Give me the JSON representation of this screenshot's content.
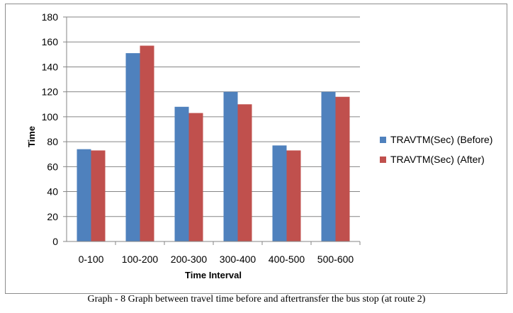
{
  "caption": "Graph - 8 Graph between travel time before and aftertransfer the bus stop (at route 2)",
  "colors": {
    "before": "#4f81bd",
    "after": "#c0504d",
    "grid": "#868686",
    "axis": "#868686",
    "text": "#000000"
  },
  "chart_data": {
    "type": "bar",
    "title": "",
    "xlabel": "Time Interval",
    "ylabel": "Time",
    "ylim": [
      0,
      180
    ],
    "yticks": [
      0,
      20,
      40,
      60,
      80,
      100,
      120,
      140,
      160,
      180
    ],
    "grid": true,
    "legend_position": "right",
    "categories": [
      "0-100",
      "100-200",
      "200-300",
      "300-400",
      "400-500",
      "500-600"
    ],
    "series": [
      {
        "name": "TRAVTM(Sec) (Before)",
        "color": "#4f81bd",
        "values": [
          74,
          151,
          108,
          120,
          77,
          120
        ]
      },
      {
        "name": "TRAVTM(Sec) (After)",
        "color": "#c0504d",
        "values": [
          73,
          157,
          103,
          110,
          73,
          116
        ]
      }
    ]
  }
}
